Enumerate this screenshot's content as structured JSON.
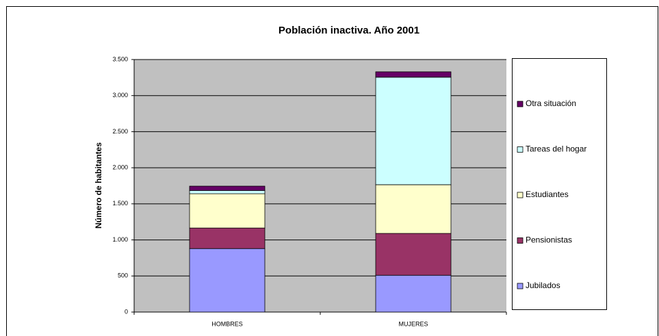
{
  "chart_data": {
    "type": "stacked_bar",
    "title": "Población inactiva. Año 2001",
    "y_label": "Número de habitantes",
    "categories": [
      "HOMBRES",
      "MUJERES"
    ],
    "series": [
      {
        "name": "Jubilados",
        "color": "#9999ff",
        "values": [
          880,
          510
        ]
      },
      {
        "name": "Pensionistas",
        "color": "#993366",
        "values": [
          285,
          580
        ]
      },
      {
        "name": "Estudiantes",
        "color": "#ffffcc",
        "values": [
          475,
          675
        ]
      },
      {
        "name": "Tareas del hogar",
        "color": "#ccffff",
        "values": [
          45,
          1490
        ]
      },
      {
        "name": "Otra situación",
        "color": "#660066",
        "values": [
          60,
          75
        ]
      }
    ],
    "ylim": [
      0,
      3500
    ],
    "yticks": [
      0,
      {
        "value": 500,
        "label": "500"
      },
      {
        "value": 1000,
        "label": "1.000"
      },
      {
        "value": 1500,
        "label": "1.500"
      },
      {
        "value": 2000,
        "label": "2.000"
      },
      {
        "value": 2500,
        "label": "2.500"
      },
      {
        "value": 3000,
        "label": "3.000"
      },
      {
        "value": 3500,
        "label": "3.500"
      }
    ],
    "grid": true,
    "legend": "right",
    "plot_background": "#c0c0c0"
  }
}
